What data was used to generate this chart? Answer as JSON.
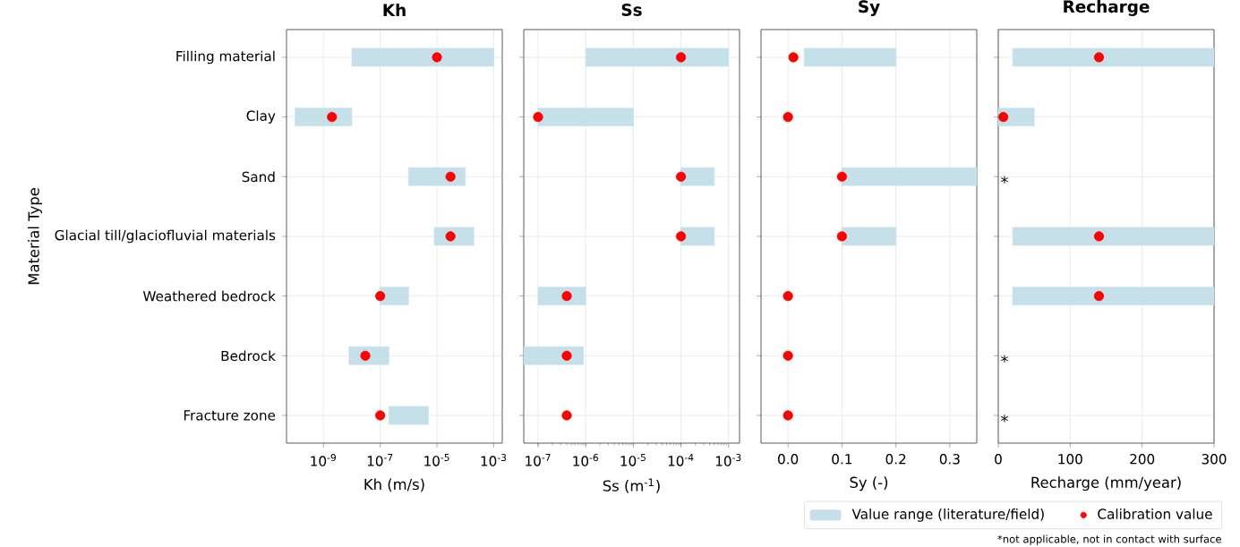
{
  "chart_data": [
    {
      "type": "bar",
      "orientation": "horizontal",
      "title": "Kh",
      "xlabel": "Kh (m/s)",
      "ylabel": "Material Type",
      "log": "x",
      "grid": true,
      "categories": [
        "Filling material",
        "Clay",
        "Sand",
        "Glacial till/glaciofluvial materials",
        "Weathered bedrock",
        "Bedrock",
        "Fracture zone"
      ],
      "xlim": [
        5e-11,
        0.002
      ],
      "xticks": [
        {
          "value": 1e-09,
          "label": "10$^{-9}$"
        },
        {
          "value": 1e-07,
          "label": "10$^{-7}$"
        },
        {
          "value": 1e-05,
          "label": "10$^{-5}$"
        },
        {
          "value": 0.001,
          "label": "10$^{-3}$"
        }
      ],
      "series": [
        {
          "type": "bar",
          "color": "#c6e0ea",
          "base": [
            1e-08,
            1e-10,
            1e-06,
            8e-06,
            1e-07,
            8e-09,
            2e-07
          ],
          "values": [
            0.00099999,
            9.9e-09,
            9.9e-05,
            0.000192,
            9e-07,
            1.92e-07,
            4.8e-06
          ]
        },
        {
          "type": "scatter",
          "color": "#ff0000",
          "marker": "circle",
          "values": [
            1e-05,
            2e-09,
            3e-05,
            3e-05,
            1e-07,
            3e-08,
            1e-07
          ]
        }
      ]
    },
    {
      "type": "bar",
      "orientation": "horizontal",
      "title": "Ss",
      "xlabel": "Ss (m$^{-1}$)",
      "log": "x",
      "grid": true,
      "tick_labels": "x",
      "categories": [
        null,
        null,
        null,
        null,
        null,
        null,
        null
      ],
      "xlim": [
        5e-08,
        0.0017
      ],
      "xticks": [
        {
          "value": 1e-07,
          "label": "10$^{-7}$"
        },
        {
          "value": 1e-06,
          "label": "10$^{-6}$"
        },
        {
          "value": 1e-05,
          "label": "10$^{-5}$"
        },
        {
          "value": 0.0001,
          "label": "10$^{-4}$"
        },
        {
          "value": 0.001,
          "label": "10$^{-3}$"
        }
      ],
      "series": [
        {
          "type": "bar",
          "color": "#c6e0ea",
          "base": [
            1e-06,
            1e-07,
            0.0001,
            0.0001,
            1e-07,
            5e-08,
            null
          ],
          "values": [
            0.000999,
            9.9e-06,
            0.0004,
            0.0004,
            9e-07,
            8.5e-07,
            null
          ]
        },
        {
          "type": "scatter",
          "color": "#ff0000",
          "marker": "circle",
          "values": [
            0.0001,
            1e-07,
            0.0001,
            0.0001,
            4e-07,
            4e-07,
            4e-07
          ]
        }
      ]
    },
    {
      "type": "bar",
      "orientation": "horizontal",
      "title": "Sy",
      "xlabel": "Sy (-)",
      "grid": true,
      "tick_labels": "x",
      "categories": [
        null,
        null,
        null,
        null,
        null,
        null,
        null
      ],
      "xlim": [
        -0.05,
        0.35
      ],
      "xticks": [
        {
          "value": 0,
          "label": "0.0"
        },
        {
          "value": 0.1,
          "label": "0.1"
        },
        {
          "value": 0.2,
          "label": "0.2"
        },
        {
          "value": 0.3,
          "label": "0.3"
        }
      ],
      "series": [
        {
          "type": "bar",
          "color": "#c6e0ea",
          "base": [
            0.03,
            null,
            0.1,
            0.1,
            null,
            null,
            null
          ],
          "values": [
            0.17,
            null,
            0.25,
            0.1,
            null,
            null,
            null
          ]
        },
        {
          "type": "scatter",
          "color": "#ff0000",
          "marker": "circle",
          "values": [
            0.01,
            0,
            0.1,
            0.1,
            0,
            0,
            0
          ]
        }
      ]
    },
    {
      "type": "bar",
      "orientation": "horizontal",
      "title": "Recharge",
      "xlabel": "Recharge (mm/year)",
      "grid": true,
      "tick_labels": "x",
      "legend": "bottom left",
      "categories": [
        null,
        null,
        null,
        null,
        null,
        null,
        null
      ],
      "xlim": [
        0,
        300
      ],
      "xticks": [
        0,
        100,
        200,
        300
      ],
      "series": [
        {
          "type": "bar",
          "name": "Value range (literature/field)",
          "color": "#c6e0ea",
          "base": [
            20,
            0,
            null,
            20,
            20,
            null,
            null
          ],
          "values": [
            280,
            50,
            null,
            280,
            280,
            null,
            null
          ]
        },
        {
          "type": "scatter",
          "name": "Calibration value",
          "color": "#ff0000",
          "marker": "circle",
          "values": [
            140,
            7,
            null,
            140,
            140,
            null,
            null
          ]
        }
      ],
      "annotations": [
        "*",
        "*",
        "*",
        "*not applicable, not in contact with surface"
      ]
    }
  ]
}
